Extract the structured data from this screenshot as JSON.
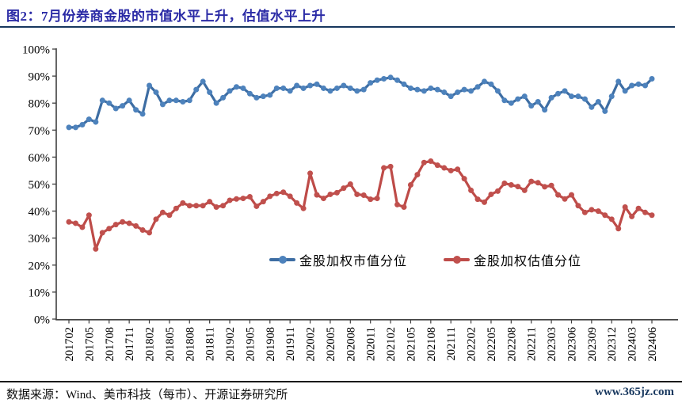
{
  "header": {
    "title": "图2：7月份券商金股的市值水平上升，估值水平上升"
  },
  "footer": {
    "source": "数据来源：Wind、美市科技（每市）、开源证券研究所",
    "site": "www.365jz.com"
  },
  "colors": {
    "title": "#2b2ba6",
    "title_rule": "#17375e",
    "axis": "#404040",
    "tick_text": "#000000",
    "blue_line": "#3d6da3",
    "blue_marker": "#4d82bc",
    "red_line": "#be4b48",
    "red_marker": "#c0504d",
    "site_link": "#17375e",
    "footer_rule": "#1a1a1a"
  },
  "chart_data": {
    "type": "line",
    "title": "",
    "xlabel": "",
    "ylabel": "",
    "ylim": [
      0,
      100
    ],
    "ytick_step": 10,
    "ytick_format": "percent",
    "grid": false,
    "legend_position": "inside-center",
    "x": [
      "201702",
      "201703",
      "201704",
      "201705",
      "201706",
      "201707",
      "201708",
      "201709",
      "201710",
      "201711",
      "201712",
      "201801",
      "201802",
      "201803",
      "201804",
      "201805",
      "201806",
      "201807",
      "201808",
      "201809",
      "201810",
      "201811",
      "201812",
      "201901",
      "201902",
      "201903",
      "201904",
      "201905",
      "201906",
      "201907",
      "201908",
      "201909",
      "201910",
      "201911",
      "201912",
      "202001",
      "202002",
      "202003",
      "202004",
      "202005",
      "202006",
      "202007",
      "202008",
      "202009",
      "202010",
      "202011",
      "202012",
      "202101",
      "202102",
      "202103",
      "202104",
      "202105",
      "202106",
      "202107",
      "202108",
      "202109",
      "202110",
      "202111",
      "202112",
      "202201",
      "202202",
      "202203",
      "202204",
      "202205",
      "202206",
      "202207",
      "202208",
      "202209",
      "202210",
      "202211",
      "202212",
      "202302",
      "202303",
      "202304",
      "202305",
      "202306",
      "202307",
      "202308",
      "202309",
      "202310",
      "202311",
      "202312",
      "202401",
      "202402",
      "202403",
      "202404",
      "202405",
      "202406"
    ],
    "x_tick_labels": [
      "201702",
      "201705",
      "201708",
      "201711",
      "201802",
      "201805",
      "201808",
      "201811",
      "201902",
      "201905",
      "201908",
      "201911",
      "202002",
      "202005",
      "202008",
      "202011",
      "202102",
      "202105",
      "202108",
      "202111",
      "202202",
      "202205",
      "202208",
      "202211",
      "202303",
      "202306",
      "202309",
      "202312",
      "202403",
      "202406"
    ],
    "series": [
      {
        "name": "金股加权市值分位",
        "color": "#3d6da3",
        "marker_color": "#4d82bc",
        "values": [
          71,
          71,
          72,
          74,
          73,
          81,
          80,
          78,
          79,
          81,
          77.5,
          76,
          86.5,
          84,
          79.5,
          81,
          81,
          80.5,
          81,
          85,
          88,
          84,
          80,
          82,
          84.5,
          86,
          85.5,
          83.5,
          82,
          82.5,
          83,
          85.5,
          85.5,
          84.5,
          86.5,
          85.5,
          86.5,
          87,
          85.5,
          84.5,
          85.5,
          86.5,
          85.5,
          84.5,
          85,
          87.5,
          88.5,
          89,
          89.5,
          88.5,
          87,
          85.5,
          85,
          84.5,
          85.5,
          85,
          84,
          82.5,
          84,
          85,
          84.5,
          86,
          88,
          87,
          84.5,
          81,
          80,
          81.5,
          82.5,
          79,
          80.5,
          77.5,
          82,
          83.5,
          84.5,
          82.5,
          82.5,
          81.5,
          78.5,
          80.5,
          77,
          82.5,
          88,
          84.5,
          86.5,
          87,
          86.5,
          89
        ]
      },
      {
        "name": "金股加权估值分位",
        "color": "#be4b48",
        "marker_color": "#c0504d",
        "values": [
          36,
          35.5,
          34,
          38.5,
          26,
          32,
          33.5,
          35,
          36,
          35.5,
          34.5,
          33,
          32,
          37,
          39.5,
          38.5,
          41,
          43,
          42,
          42,
          42,
          43.5,
          41.5,
          42,
          44,
          44.5,
          44.7,
          45.3,
          41.8,
          43.5,
          45.5,
          46.5,
          47,
          45.5,
          43,
          41,
          54,
          46,
          44.7,
          46.2,
          46.8,
          48.5,
          50,
          46.2,
          45.9,
          44.4,
          44.7,
          56,
          56.5,
          42.4,
          41.5,
          49.7,
          53.5,
          58,
          58.5,
          57,
          56,
          55,
          55.5,
          52,
          47.7,
          44.4,
          43.3,
          46.2,
          47.4,
          50.3,
          49.7,
          49.1,
          47.7,
          51,
          50.5,
          49,
          49.5,
          46,
          44.5,
          46,
          42,
          39.5,
          40.5,
          40,
          38.5,
          37,
          33.5,
          41.5,
          38,
          41,
          39.5,
          38.5
        ]
      }
    ]
  }
}
